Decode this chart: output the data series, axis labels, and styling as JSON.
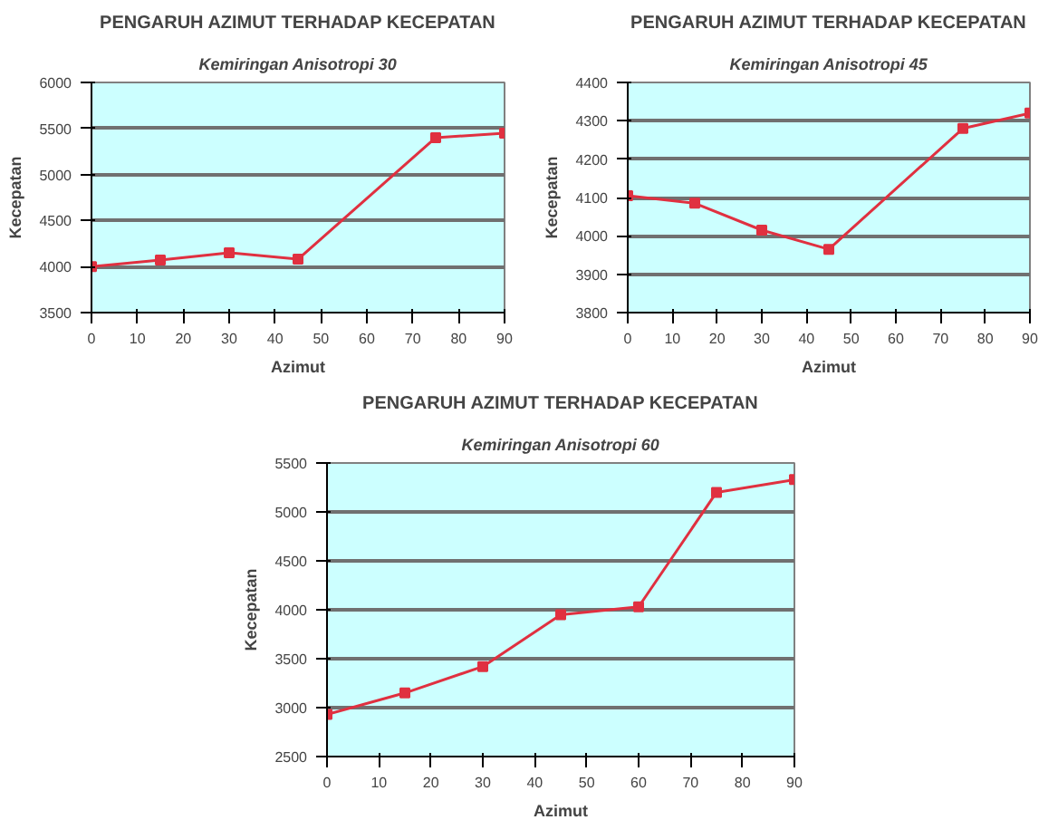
{
  "chart_data": [
    {
      "type": "line",
      "title": "PENGARUH AZIMUT TERHADAP KECEPATAN",
      "subtitle": "Kemiringan Anisotropi 30",
      "xlabel": "Azimut",
      "ylabel": "Kecepatan",
      "x": [
        0,
        15,
        30,
        45,
        75,
        90
      ],
      "series": [
        {
          "color": "#e03040",
          "values": [
            4000,
            4070,
            4150,
            4080,
            5400,
            5450
          ]
        }
      ],
      "xlim": [
        0,
        90
      ],
      "xticks": [
        0,
        10,
        20,
        30,
        40,
        50,
        60,
        70,
        80,
        90
      ],
      "ylim": [
        3500,
        6000
      ],
      "yticks": [
        3500,
        4000,
        4500,
        5000,
        5500,
        6000
      ],
      "grid": "y",
      "marker": "square",
      "line_style": "solid"
    },
    {
      "type": "line",
      "title": "PENGARUH AZIMUT TERHADAP KECEPATAN",
      "subtitle": "Kemiringan Anisotropi 45",
      "xlabel": "Azimut",
      "ylabel": "Kecepatan",
      "x": [
        0,
        15,
        30,
        45,
        75,
        90
      ],
      "series": [
        {
          "color": "#e03040",
          "values": [
            4105,
            4085,
            4015,
            3965,
            4280,
            4320
          ]
        }
      ],
      "xlim": [
        0,
        90
      ],
      "xticks": [
        0,
        10,
        20,
        30,
        40,
        50,
        60,
        70,
        80,
        90
      ],
      "ylim": [
        3800,
        4400
      ],
      "yticks": [
        3800,
        3900,
        4000,
        4100,
        4200,
        4300,
        4400
      ],
      "grid": "y",
      "marker": "square",
      "line_style": "solid"
    },
    {
      "type": "line",
      "title": "PENGARUH AZIMUT TERHADAP KECEPATAN",
      "subtitle": "Kemiringan Anisotropi 60",
      "xlabel": "Azimut",
      "ylabel": "Kecepatan",
      "x": [
        0,
        15,
        30,
        45,
        60,
        75,
        90
      ],
      "series": [
        {
          "color": "#e03040",
          "values": [
            2930,
            3150,
            3420,
            3950,
            4030,
            5200,
            5330
          ]
        }
      ],
      "xlim": [
        0,
        90
      ],
      "xticks": [
        0,
        10,
        20,
        30,
        40,
        50,
        60,
        70,
        80,
        90
      ],
      "ylim": [
        2500,
        5500
      ],
      "yticks": [
        2500,
        3000,
        3500,
        4000,
        4500,
        5000,
        5500
      ],
      "grid": "y",
      "marker": "square",
      "line_style": "solid"
    }
  ]
}
